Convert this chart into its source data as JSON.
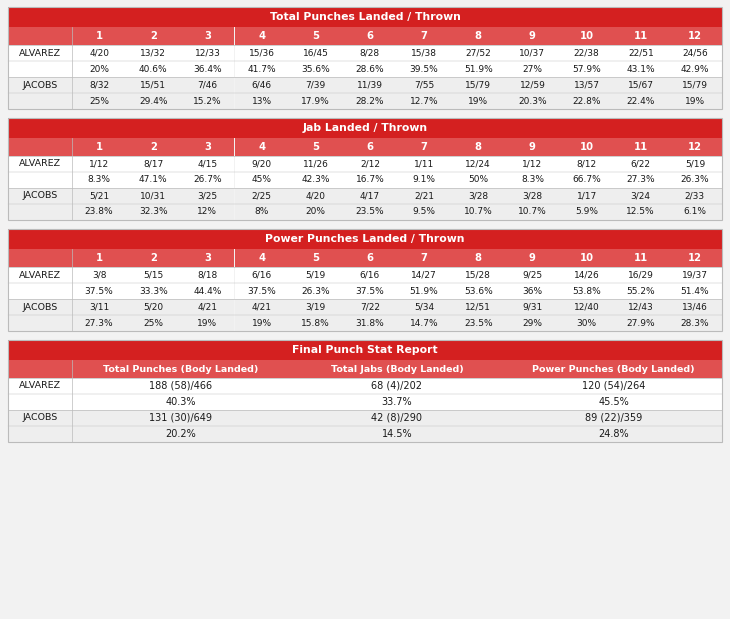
{
  "bg_color": "#f2f2f2",
  "header_color": "#d42020",
  "subheader_color": "#e05050",
  "white": "#ffffff",
  "light_gray": "#eeeeee",
  "dark_text": "#1a1a1a",
  "border_color": "#bbbbbb",
  "table1_title": "Total Punches Landed / Thrown",
  "table1_rounds": [
    "1",
    "2",
    "3",
    "4",
    "5",
    "6",
    "7",
    "8",
    "9",
    "10",
    "11",
    "12"
  ],
  "table1_alvarez_top": [
    "4/20",
    "13/32",
    "12/33",
    "15/36",
    "16/45",
    "8/28",
    "15/38",
    "27/52",
    "10/37",
    "22/38",
    "22/51",
    "24/56"
  ],
  "table1_alvarez_pct": [
    "20%",
    "40.6%",
    "36.4%",
    "41.7%",
    "35.6%",
    "28.6%",
    "39.5%",
    "51.9%",
    "27%",
    "57.9%",
    "43.1%",
    "42.9%"
  ],
  "table1_jacobs_top": [
    "8/32",
    "15/51",
    "7/46",
    "6/46",
    "7/39",
    "11/39",
    "7/55",
    "15/79",
    "12/59",
    "13/57",
    "15/67",
    "15/79"
  ],
  "table1_jacobs_pct": [
    "25%",
    "29.4%",
    "15.2%",
    "13%",
    "17.9%",
    "28.2%",
    "12.7%",
    "19%",
    "20.3%",
    "22.8%",
    "22.4%",
    "19%"
  ],
  "table2_title": "Jab Landed / Thrown",
  "table2_rounds": [
    "1",
    "2",
    "3",
    "4",
    "5",
    "6",
    "7",
    "8",
    "9",
    "10",
    "11",
    "12"
  ],
  "table2_alvarez_top": [
    "1/12",
    "8/17",
    "4/15",
    "9/20",
    "11/26",
    "2/12",
    "1/11",
    "12/24",
    "1/12",
    "8/12",
    "6/22",
    "5/19"
  ],
  "table2_alvarez_pct": [
    "8.3%",
    "47.1%",
    "26.7%",
    "45%",
    "42.3%",
    "16.7%",
    "9.1%",
    "50%",
    "8.3%",
    "66.7%",
    "27.3%",
    "26.3%"
  ],
  "table2_jacobs_top": [
    "5/21",
    "10/31",
    "3/25",
    "2/25",
    "4/20",
    "4/17",
    "2/21",
    "3/28",
    "3/28",
    "1/17",
    "3/24",
    "2/33"
  ],
  "table2_jacobs_pct": [
    "23.8%",
    "32.3%",
    "12%",
    "8%",
    "20%",
    "23.5%",
    "9.5%",
    "10.7%",
    "10.7%",
    "5.9%",
    "12.5%",
    "6.1%"
  ],
  "table3_title": "Power Punches Landed / Thrown",
  "table3_rounds": [
    "1",
    "2",
    "3",
    "4",
    "5",
    "6",
    "7",
    "8",
    "9",
    "10",
    "11",
    "12"
  ],
  "table3_alvarez_top": [
    "3/8",
    "5/15",
    "8/18",
    "6/16",
    "5/19",
    "6/16",
    "14/27",
    "15/28",
    "9/25",
    "14/26",
    "16/29",
    "19/37"
  ],
  "table3_alvarez_pct": [
    "37.5%",
    "33.3%",
    "44.4%",
    "37.5%",
    "26.3%",
    "37.5%",
    "51.9%",
    "53.6%",
    "36%",
    "53.8%",
    "55.2%",
    "51.4%"
  ],
  "table3_jacobs_top": [
    "3/11",
    "5/20",
    "4/21",
    "4/21",
    "3/19",
    "7/22",
    "5/34",
    "12/51",
    "9/31",
    "12/40",
    "12/43",
    "13/46"
  ],
  "table3_jacobs_pct": [
    "27.3%",
    "25%",
    "19%",
    "19%",
    "15.8%",
    "31.8%",
    "14.7%",
    "23.5%",
    "29%",
    "30%",
    "27.9%",
    "28.3%"
  ],
  "table4_title": "Final Punch Stat Report",
  "table4_col_headers": [
    "Total Punches (Body Landed)",
    "Total Jabs (Body Landed)",
    "Power Punches (Body Landed)"
  ],
  "table4_alvarez_top": [
    "188 (58)/466",
    "68 (4)/202",
    "120 (54)/264"
  ],
  "table4_alvarez_pct": [
    "40.3%",
    "33.7%",
    "45.5%"
  ],
  "table4_jacobs_top": [
    "131 (30)/649",
    "42 (8)/290",
    "89 (22)/359"
  ],
  "table4_jacobs_pct": [
    "20.2%",
    "14.5%",
    "24.8%"
  ]
}
